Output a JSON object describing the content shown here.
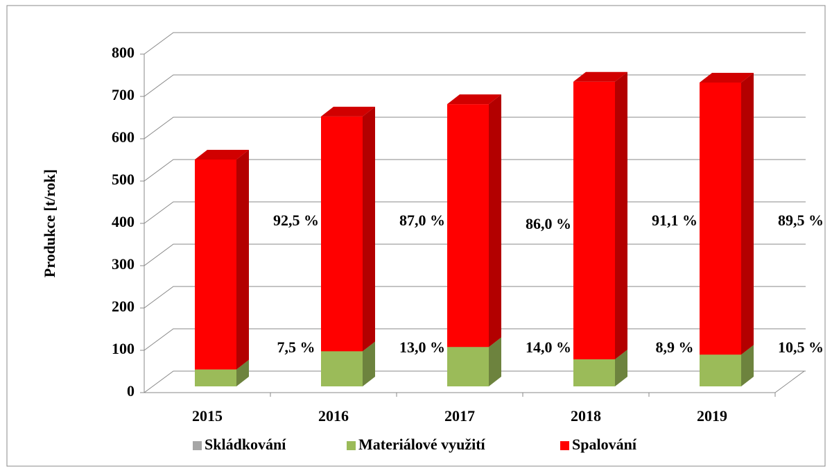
{
  "chart_data": {
    "type": "bar3d_stacked",
    "y_label": "Produkce [t/rok]",
    "categories": [
      "2015",
      "2016",
      "2017",
      "2018",
      "2019"
    ],
    "series": [
      {
        "name": "Skládkování",
        "color": "#a6a6a6",
        "values": [
          0,
          0,
          0,
          0,
          0
        ]
      },
      {
        "name": "Materiálové využití",
        "color": "#9bbb59",
        "values": [
          40,
          83,
          93,
          64,
          75
        ],
        "annotations": [
          "7,5 %",
          "13,0 %",
          "14,0 %",
          "8,9 %",
          "10,5 %"
        ]
      },
      {
        "name": "Spalování",
        "color": "#ff0000",
        "values": [
          496,
          555,
          574,
          656,
          643
        ],
        "annotations": [
          "92,5 %",
          "87,0 %",
          "86,0 %",
          "91,1 %",
          "89,5 %"
        ]
      }
    ],
    "ylim": [
      0,
      800
    ],
    "yticks": [
      0,
      100,
      200,
      300,
      400,
      500,
      600,
      700,
      800
    ],
    "grid": true
  }
}
